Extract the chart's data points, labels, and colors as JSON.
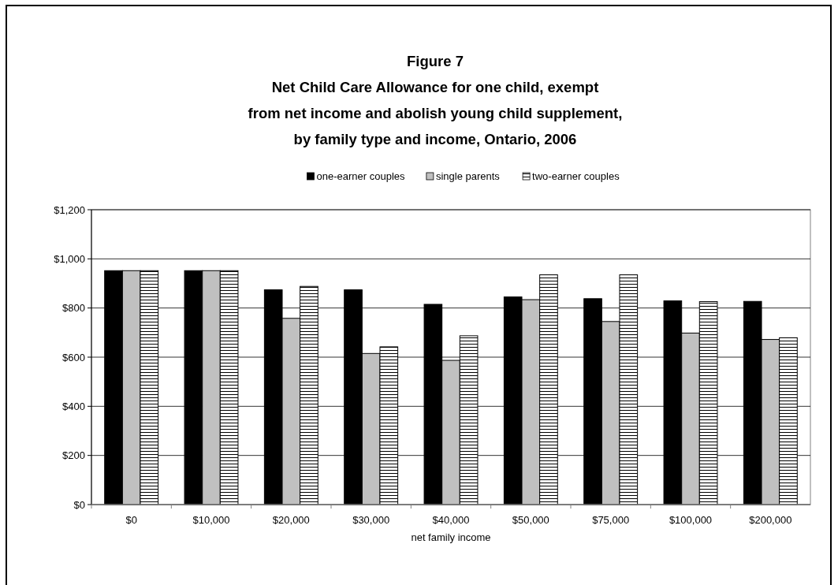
{
  "chart_data": {
    "type": "bar",
    "title": "Figure 7\nNet Child Care Allowance for one child, exempt\nfrom net income and abolish young child supplement,\nby family type and income, Ontario, 2006",
    "xlabel": "net family income",
    "categories": [
      "$0",
      "$10,000",
      "$20,000",
      "$30,000",
      "$40,000",
      "$50,000",
      "$75,000",
      "$100,000",
      "$200,000"
    ],
    "series": [
      {
        "name": "one-earner couples",
        "color": "#000000",
        "values": [
          952,
          952,
          874,
          874,
          815,
          845,
          838,
          829,
          827
        ]
      },
      {
        "name": "single parents",
        "color": "#c0c0c0",
        "values": [
          952,
          952,
          758,
          615,
          587,
          834,
          745,
          698,
          672
        ]
      },
      {
        "name": "two-earner couples",
        "color": "#000000",
        "values": [
          952,
          952,
          888,
          642,
          687,
          935,
          935,
          826,
          679
        ]
      }
    ],
    "ylim": [
      0,
      1200
    ],
    "yticks": [
      {
        "value": 0,
        "label": "$0"
      },
      {
        "value": 200,
        "label": "$200"
      },
      {
        "value": 400,
        "label": "$400"
      },
      {
        "value": 600,
        "label": "$600"
      },
      {
        "value": 800,
        "label": "$800"
      },
      {
        "value": 1000,
        "label": "$1,000"
      },
      {
        "value": 1200,
        "label": "$1,200"
      }
    ],
    "grid": "y",
    "legend": "top"
  }
}
